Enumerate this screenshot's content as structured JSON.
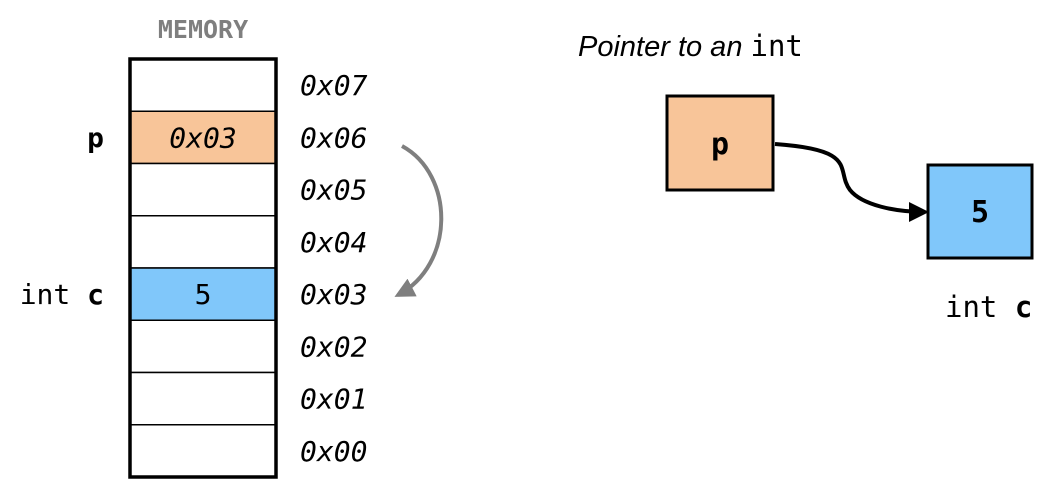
{
  "memory": {
    "title": "MEMORY",
    "cells": [
      {
        "address": "0x07",
        "value": "",
        "var_type": "",
        "var_name": "",
        "highlight": "none"
      },
      {
        "address": "0x06",
        "value": "0x03",
        "var_type": "",
        "var_name": "p",
        "highlight": "pointer"
      },
      {
        "address": "0x05",
        "value": "",
        "var_type": "",
        "var_name": "",
        "highlight": "none"
      },
      {
        "address": "0x04",
        "value": "",
        "var_type": "",
        "var_name": "",
        "highlight": "none"
      },
      {
        "address": "0x03",
        "value": "5",
        "var_type": "int",
        "var_name": "c",
        "highlight": "int"
      },
      {
        "address": "0x02",
        "value": "",
        "var_type": "",
        "var_name": "",
        "highlight": "none"
      },
      {
        "address": "0x01",
        "value": "",
        "var_type": "",
        "var_name": "",
        "highlight": "none"
      },
      {
        "address": "0x00",
        "value": "",
        "var_type": "",
        "var_name": "",
        "highlight": "none"
      }
    ]
  },
  "diagram": {
    "title_prefix": "Pointer to an ",
    "title_type": "int",
    "pointer_box": {
      "label": "p"
    },
    "target_box": {
      "label": "5"
    },
    "target_caption": {
      "type": "int",
      "name": "c"
    }
  },
  "colors": {
    "pointer_fill": "#F8C599",
    "int_fill": "#80C7FA",
    "cell_border": "#000000",
    "arrow_gray": "#7f7f7f",
    "title_gray": "#7f7f7f"
  }
}
